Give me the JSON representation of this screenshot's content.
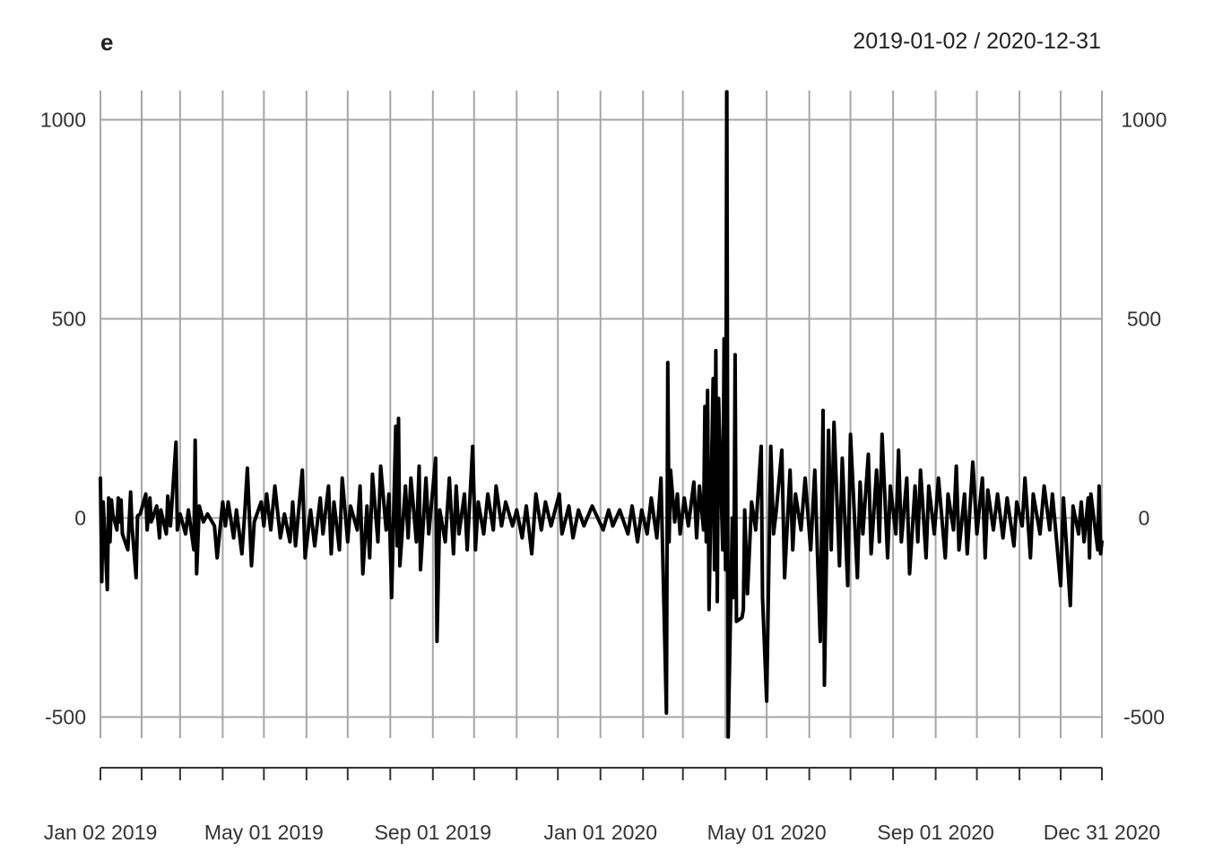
{
  "chart_data": {
    "type": "line",
    "title": "e",
    "subtitle": "2019-01-02 / 2020-12-31",
    "xlabel": "",
    "ylabel": "",
    "x_start": "2019-01-02",
    "x_end": "2020-12-31",
    "ylim": [
      -550,
      1070
    ],
    "y_ticks": [
      -500,
      0,
      500,
      1000
    ],
    "x_tick_labels": [
      "Jan 02 2019",
      "May 01 2019",
      "Sep 01 2019",
      "Jan 01 2020",
      "May 01 2020",
      "Sep 01 2020",
      "Dec 31 2020"
    ],
    "x_tick_dates": [
      "2019-01-02",
      "2019-05-01",
      "2019-09-01",
      "2020-01-01",
      "2020-05-01",
      "2020-09-01",
      "2020-12-31"
    ],
    "x_grid_dates": [
      "2019-01-02",
      "2019-02-01",
      "2019-03-01",
      "2019-04-01",
      "2019-05-01",
      "2019-06-01",
      "2019-07-01",
      "2019-08-01",
      "2019-09-01",
      "2019-10-01",
      "2019-11-01",
      "2019-12-01",
      "2020-01-01",
      "2020-02-01",
      "2020-03-01",
      "2020-04-01",
      "2020-05-01",
      "2020-06-01",
      "2020-07-01",
      "2020-08-01",
      "2020-09-01",
      "2020-10-01",
      "2020-11-01",
      "2020-12-01",
      "2020-12-31"
    ],
    "grid": true,
    "series": [
      {
        "color": "#000000",
        "points": [
          [
            "2019-01-02",
            100
          ],
          [
            "2019-01-03",
            -160
          ],
          [
            "2019-01-04",
            40
          ],
          [
            "2019-01-07",
            -180
          ],
          [
            "2019-01-08",
            50
          ],
          [
            "2019-01-09",
            -60
          ],
          [
            "2019-01-10",
            45
          ],
          [
            "2019-01-11",
            10
          ],
          [
            "2019-01-14",
            -30
          ],
          [
            "2019-01-15",
            50
          ],
          [
            "2019-01-16",
            -10
          ],
          [
            "2019-01-17",
            45
          ],
          [
            "2019-01-18",
            -40
          ],
          [
            "2019-01-22",
            -80
          ],
          [
            "2019-01-24",
            65
          ],
          [
            "2019-01-25",
            -20
          ],
          [
            "2019-01-28",
            -150
          ],
          [
            "2019-01-29",
            5
          ],
          [
            "2019-01-31",
            10
          ],
          [
            "2019-02-04",
            60
          ],
          [
            "2019-02-05",
            -30
          ],
          [
            "2019-02-07",
            50
          ],
          [
            "2019-02-08",
            -10
          ],
          [
            "2019-02-12",
            30
          ],
          [
            "2019-02-14",
            -50
          ],
          [
            "2019-02-15",
            20
          ],
          [
            "2019-02-19",
            -40
          ],
          [
            "2019-02-20",
            55
          ],
          [
            "2019-02-22",
            -20
          ],
          [
            "2019-02-26",
            190
          ],
          [
            "2019-02-27",
            -30
          ],
          [
            "2019-03-01",
            10
          ],
          [
            "2019-03-05",
            -40
          ],
          [
            "2019-03-07",
            20
          ],
          [
            "2019-03-11",
            -80
          ],
          [
            "2019-03-12",
            195
          ],
          [
            "2019-03-13",
            -140
          ],
          [
            "2019-03-15",
            30
          ],
          [
            "2019-03-18",
            -10
          ],
          [
            "2019-03-21",
            10
          ],
          [
            "2019-03-26",
            -20
          ],
          [
            "2019-03-28",
            -100
          ],
          [
            "2019-04-01",
            40
          ],
          [
            "2019-04-03",
            -20
          ],
          [
            "2019-04-05",
            40
          ],
          [
            "2019-04-09",
            -50
          ],
          [
            "2019-04-11",
            20
          ],
          [
            "2019-04-15",
            -90
          ],
          [
            "2019-04-17",
            10
          ],
          [
            "2019-04-19",
            125
          ],
          [
            "2019-04-22",
            -120
          ],
          [
            "2019-04-24",
            -10
          ],
          [
            "2019-04-29",
            40
          ],
          [
            "2019-05-01",
            -20
          ],
          [
            "2019-05-03",
            60
          ],
          [
            "2019-05-06",
            -30
          ],
          [
            "2019-05-09",
            80
          ],
          [
            "2019-05-13",
            -50
          ],
          [
            "2019-05-16",
            10
          ],
          [
            "2019-05-20",
            -60
          ],
          [
            "2019-05-22",
            40
          ],
          [
            "2019-05-24",
            -70
          ],
          [
            "2019-05-29",
            120
          ],
          [
            "2019-05-31",
            -100
          ],
          [
            "2019-06-04",
            20
          ],
          [
            "2019-06-07",
            -70
          ],
          [
            "2019-06-11",
            50
          ],
          [
            "2019-06-13",
            -40
          ],
          [
            "2019-06-17",
            80
          ],
          [
            "2019-06-19",
            -90
          ],
          [
            "2019-06-21",
            40
          ],
          [
            "2019-06-25",
            -80
          ],
          [
            "2019-06-27",
            100
          ],
          [
            "2019-07-01",
            -60
          ],
          [
            "2019-07-03",
            30
          ],
          [
            "2019-07-08",
            -30
          ],
          [
            "2019-07-10",
            80
          ],
          [
            "2019-07-12",
            -140
          ],
          [
            "2019-07-15",
            30
          ],
          [
            "2019-07-17",
            -100
          ],
          [
            "2019-07-19",
            110
          ],
          [
            "2019-07-23",
            -60
          ],
          [
            "2019-07-25",
            130
          ],
          [
            "2019-07-29",
            -30
          ],
          [
            "2019-07-31",
            60
          ],
          [
            "2019-08-02",
            -200
          ],
          [
            "2019-08-05",
            230
          ],
          [
            "2019-08-06",
            -70
          ],
          [
            "2019-08-07",
            250
          ],
          [
            "2019-08-08",
            -120
          ],
          [
            "2019-08-12",
            80
          ],
          [
            "2019-08-14",
            -50
          ],
          [
            "2019-08-16",
            100
          ],
          [
            "2019-08-20",
            -60
          ],
          [
            "2019-08-22",
            130
          ],
          [
            "2019-08-23",
            -130
          ],
          [
            "2019-08-27",
            100
          ],
          [
            "2019-08-29",
            -40
          ],
          [
            "2019-09-03",
            150
          ],
          [
            "2019-09-04",
            -310
          ],
          [
            "2019-09-06",
            20
          ],
          [
            "2019-09-10",
            -60
          ],
          [
            "2019-09-13",
            100
          ],
          [
            "2019-09-16",
            -90
          ],
          [
            "2019-09-18",
            80
          ],
          [
            "2019-09-20",
            -40
          ],
          [
            "2019-09-24",
            60
          ],
          [
            "2019-09-26",
            -80
          ],
          [
            "2019-09-30",
            180
          ],
          [
            "2019-10-02",
            -80
          ],
          [
            "2019-10-04",
            40
          ],
          [
            "2019-10-08",
            -40
          ],
          [
            "2019-10-11",
            60
          ],
          [
            "2019-10-15",
            -30
          ],
          [
            "2019-10-17",
            80
          ],
          [
            "2019-10-21",
            -20
          ],
          [
            "2019-10-24",
            40
          ],
          [
            "2019-10-29",
            -20
          ],
          [
            "2019-11-01",
            20
          ],
          [
            "2019-11-05",
            -50
          ],
          [
            "2019-11-08",
            30
          ],
          [
            "2019-11-12",
            -90
          ],
          [
            "2019-11-15",
            60
          ],
          [
            "2019-11-19",
            -30
          ],
          [
            "2019-11-22",
            40
          ],
          [
            "2019-11-26",
            -20
          ],
          [
            "2019-12-02",
            60
          ],
          [
            "2019-12-04",
            -40
          ],
          [
            "2019-12-09",
            30
          ],
          [
            "2019-12-12",
            -50
          ],
          [
            "2019-12-16",
            20
          ],
          [
            "2019-12-20",
            -20
          ],
          [
            "2019-12-26",
            30
          ],
          [
            "2020-01-03",
            -30
          ],
          [
            "2020-01-07",
            20
          ],
          [
            "2020-01-10",
            -20
          ],
          [
            "2020-01-15",
            20
          ],
          [
            "2020-01-21",
            -40
          ],
          [
            "2020-01-24",
            30
          ],
          [
            "2020-01-28",
            -60
          ],
          [
            "2020-01-31",
            20
          ],
          [
            "2020-02-04",
            -40
          ],
          [
            "2020-02-07",
            50
          ],
          [
            "2020-02-11",
            -50
          ],
          [
            "2020-02-14",
            100
          ],
          [
            "2020-02-18",
            -490
          ],
          [
            "2020-02-19",
            390
          ],
          [
            "2020-02-20",
            -60
          ],
          [
            "2020-02-21",
            120
          ],
          [
            "2020-02-24",
            -10
          ],
          [
            "2020-02-26",
            60
          ],
          [
            "2020-02-28",
            -40
          ],
          [
            "2020-03-02",
            50
          ],
          [
            "2020-03-05",
            -20
          ],
          [
            "2020-03-09",
            90
          ],
          [
            "2020-03-11",
            -50
          ],
          [
            "2020-03-13",
            80
          ],
          [
            "2020-03-16",
            -30
          ],
          [
            "2020-03-17",
            280
          ],
          [
            "2020-03-18",
            -60
          ],
          [
            "2020-03-19",
            320
          ],
          [
            "2020-03-20",
            -230
          ],
          [
            "2020-03-23",
            350
          ],
          [
            "2020-03-24",
            -130
          ],
          [
            "2020-03-25",
            420
          ],
          [
            "2020-03-26",
            -210
          ],
          [
            "2020-03-27",
            300
          ],
          [
            "2020-03-30",
            -80
          ],
          [
            "2020-03-31",
            450
          ],
          [
            "2020-04-01",
            -130
          ],
          [
            "2020-04-02",
            1070
          ],
          [
            "2020-04-03",
            -550
          ],
          [
            "2020-04-06",
            0
          ],
          [
            "2020-04-07",
            -200
          ],
          [
            "2020-04-08",
            410
          ],
          [
            "2020-04-09",
            -260
          ],
          [
            "2020-04-13",
            -250
          ],
          [
            "2020-04-14",
            -230
          ],
          [
            "2020-04-15",
            20
          ],
          [
            "2020-04-17",
            -190
          ],
          [
            "2020-04-20",
            40
          ],
          [
            "2020-04-23",
            -30
          ],
          [
            "2020-04-27",
            180
          ],
          [
            "2020-04-28",
            -200
          ],
          [
            "2020-05-01",
            -460
          ],
          [
            "2020-05-04",
            180
          ],
          [
            "2020-05-06",
            -40
          ],
          [
            "2020-05-08",
            20
          ],
          [
            "2020-05-12",
            170
          ],
          [
            "2020-05-14",
            -150
          ],
          [
            "2020-05-18",
            120
          ],
          [
            "2020-05-20",
            -80
          ],
          [
            "2020-05-22",
            60
          ],
          [
            "2020-05-26",
            -30
          ],
          [
            "2020-05-29",
            100
          ],
          [
            "2020-06-02",
            -80
          ],
          [
            "2020-06-05",
            120
          ],
          [
            "2020-06-09",
            -310
          ],
          [
            "2020-06-11",
            270
          ],
          [
            "2020-06-12",
            -420
          ],
          [
            "2020-06-15",
            220
          ],
          [
            "2020-06-17",
            -80
          ],
          [
            "2020-06-19",
            240
          ],
          [
            "2020-06-23",
            -120
          ],
          [
            "2020-06-25",
            150
          ],
          [
            "2020-06-29",
            -170
          ],
          [
            "2020-07-01",
            210
          ],
          [
            "2020-07-06",
            -150
          ],
          [
            "2020-07-08",
            90
          ],
          [
            "2020-07-10",
            -40
          ],
          [
            "2020-07-14",
            160
          ],
          [
            "2020-07-16",
            -90
          ],
          [
            "2020-07-20",
            120
          ],
          [
            "2020-07-22",
            -60
          ],
          [
            "2020-07-24",
            210
          ],
          [
            "2020-07-28",
            -100
          ],
          [
            "2020-07-30",
            80
          ],
          [
            "2020-08-03",
            -40
          ],
          [
            "2020-08-05",
            170
          ],
          [
            "2020-08-07",
            -60
          ],
          [
            "2020-08-11",
            100
          ],
          [
            "2020-08-13",
            -140
          ],
          [
            "2020-08-17",
            80
          ],
          [
            "2020-08-19",
            -60
          ],
          [
            "2020-08-21",
            120
          ],
          [
            "2020-08-25",
            -100
          ],
          [
            "2020-08-27",
            80
          ],
          [
            "2020-08-31",
            -40
          ],
          [
            "2020-09-03",
            100
          ],
          [
            "2020-09-08",
            -100
          ],
          [
            "2020-09-10",
            60
          ],
          [
            "2020-09-14",
            -30
          ],
          [
            "2020-09-16",
            130
          ],
          [
            "2020-09-18",
            -80
          ],
          [
            "2020-09-22",
            60
          ],
          [
            "2020-09-24",
            -90
          ],
          [
            "2020-09-28",
            140
          ],
          [
            "2020-10-01",
            -40
          ],
          [
            "2020-10-05",
            100
          ],
          [
            "2020-10-07",
            -100
          ],
          [
            "2020-10-09",
            70
          ],
          [
            "2020-10-13",
            -30
          ],
          [
            "2020-10-16",
            60
          ],
          [
            "2020-10-20",
            -50
          ],
          [
            "2020-10-23",
            50
          ],
          [
            "2020-10-28",
            -70
          ],
          [
            "2020-10-30",
            40
          ],
          [
            "2020-11-03",
            -20
          ],
          [
            "2020-11-05",
            100
          ],
          [
            "2020-11-09",
            -100
          ],
          [
            "2020-11-11",
            60
          ],
          [
            "2020-11-16",
            -40
          ],
          [
            "2020-11-19",
            80
          ],
          [
            "2020-11-23",
            -30
          ],
          [
            "2020-11-25",
            60
          ],
          [
            "2020-12-01",
            -170
          ],
          [
            "2020-12-03",
            50
          ],
          [
            "2020-12-08",
            -220
          ],
          [
            "2020-12-10",
            30
          ],
          [
            "2020-12-14",
            -40
          ],
          [
            "2020-12-16",
            40
          ],
          [
            "2020-12-18",
            -60
          ],
          [
            "2020-12-21",
            50
          ],
          [
            "2020-12-22",
            -100
          ],
          [
            "2020-12-23",
            60
          ],
          [
            "2020-12-28",
            -80
          ],
          [
            "2020-12-29",
            80
          ],
          [
            "2020-12-30",
            -90
          ],
          [
            "2020-12-31",
            -60
          ]
        ]
      }
    ]
  }
}
